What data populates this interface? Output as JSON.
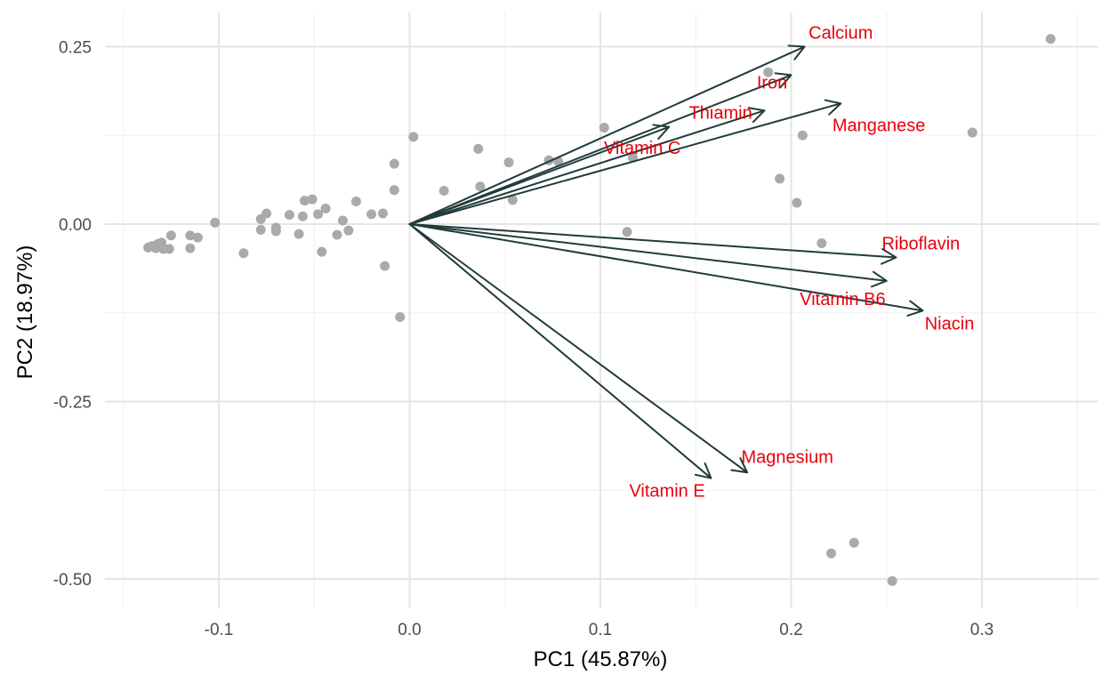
{
  "colors": {
    "background": "#ffffff",
    "grid_major": "#e5e5e5",
    "grid_minor": "#f2f2f2",
    "point": "#aaaaaa",
    "arrow": "#213b3b",
    "loading_label": "#e8000b"
  },
  "chart_data": {
    "type": "scatter",
    "subtype": "pca-biplot",
    "title": "",
    "xlabel": "PC1 (45.87%)",
    "ylabel": "PC2 (18.97%)",
    "xlim": [
      -0.15,
      0.35
    ],
    "ylim": [
      -0.54,
      0.28
    ],
    "x_ticks": [
      -0.1,
      0.0,
      0.1,
      0.2,
      0.3
    ],
    "x_tick_labels": [
      "-0.1",
      "0.0",
      "0.1",
      "0.2",
      "0.3"
    ],
    "y_ticks": [
      0.25,
      0.0,
      -0.25,
      -0.5
    ],
    "y_tick_labels": [
      "0.25",
      "0.00",
      "-0.25",
      "-0.50"
    ],
    "grid": true,
    "legend": "none",
    "points": [
      {
        "x": -0.137,
        "y": -0.033
      },
      {
        "x": -0.135,
        "y": -0.031
      },
      {
        "x": -0.133,
        "y": -0.034
      },
      {
        "x": -0.132,
        "y": -0.028
      },
      {
        "x": -0.13,
        "y": -0.026
      },
      {
        "x": -0.129,
        "y": -0.035
      },
      {
        "x": -0.126,
        "y": -0.035
      },
      {
        "x": -0.125,
        "y": -0.016
      },
      {
        "x": -0.115,
        "y": -0.016
      },
      {
        "x": -0.115,
        "y": -0.034
      },
      {
        "x": -0.111,
        "y": -0.019
      },
      {
        "x": -0.102,
        "y": 0.002
      },
      {
        "x": -0.087,
        "y": -0.041
      },
      {
        "x": -0.078,
        "y": 0.007
      },
      {
        "x": -0.078,
        "y": -0.008
      },
      {
        "x": -0.075,
        "y": 0.015
      },
      {
        "x": -0.07,
        "y": -0.005
      },
      {
        "x": -0.07,
        "y": -0.01
      },
      {
        "x": -0.063,
        "y": 0.013
      },
      {
        "x": -0.058,
        "y": -0.014
      },
      {
        "x": -0.056,
        "y": 0.011
      },
      {
        "x": -0.055,
        "y": 0.033
      },
      {
        "x": -0.051,
        "y": 0.035
      },
      {
        "x": -0.048,
        "y": 0.014
      },
      {
        "x": -0.046,
        "y": -0.039
      },
      {
        "x": -0.044,
        "y": 0.022
      },
      {
        "x": -0.038,
        "y": -0.015
      },
      {
        "x": -0.035,
        "y": 0.005
      },
      {
        "x": -0.032,
        "y": -0.009
      },
      {
        "x": -0.028,
        "y": 0.032
      },
      {
        "x": -0.02,
        "y": 0.014
      },
      {
        "x": -0.014,
        "y": 0.015
      },
      {
        "x": -0.013,
        "y": -0.059
      },
      {
        "x": -0.008,
        "y": 0.048
      },
      {
        "x": -0.008,
        "y": 0.085
      },
      {
        "x": -0.005,
        "y": -0.131
      },
      {
        "x": 0.002,
        "y": 0.123
      },
      {
        "x": 0.018,
        "y": 0.047
      },
      {
        "x": 0.036,
        "y": 0.106
      },
      {
        "x": 0.037,
        "y": 0.053
      },
      {
        "x": 0.052,
        "y": 0.087
      },
      {
        "x": 0.054,
        "y": 0.034
      },
      {
        "x": 0.073,
        "y": 0.09
      },
      {
        "x": 0.078,
        "y": 0.088
      },
      {
        "x": 0.102,
        "y": 0.136
      },
      {
        "x": 0.114,
        "y": -0.011
      },
      {
        "x": 0.117,
        "y": 0.094
      },
      {
        "x": 0.188,
        "y": 0.214
      },
      {
        "x": 0.194,
        "y": 0.064
      },
      {
        "x": 0.203,
        "y": 0.03
      },
      {
        "x": 0.206,
        "y": 0.125
      },
      {
        "x": 0.216,
        "y": -0.027
      },
      {
        "x": 0.221,
        "y": -0.464
      },
      {
        "x": 0.233,
        "y": -0.449
      },
      {
        "x": 0.253,
        "y": -0.503
      },
      {
        "x": 0.295,
        "y": 0.129
      },
      {
        "x": 0.336,
        "y": 0.261
      }
    ],
    "loadings": [
      {
        "name": "Calcium",
        "x": 0.207,
        "y": 0.25,
        "label_x": 0.226,
        "label_y": 0.27
      },
      {
        "name": "Iron",
        "x": 0.2,
        "y": 0.21,
        "label_x": 0.19,
        "label_y": 0.2
      },
      {
        "name": "Manganese",
        "x": 0.226,
        "y": 0.17,
        "label_x": 0.246,
        "label_y": 0.14
      },
      {
        "name": "Thiamin",
        "x": 0.186,
        "y": 0.16,
        "label_x": 0.163,
        "label_y": 0.157
      },
      {
        "name": "Vitamin C",
        "x": 0.136,
        "y": 0.137,
        "label_x": 0.122,
        "label_y": 0.108
      },
      {
        "name": "Riboflavin",
        "x": 0.255,
        "y": -0.047,
        "label_x": 0.268,
        "label_y": -0.027
      },
      {
        "name": "Vitamin B6",
        "x": 0.25,
        "y": -0.08,
        "label_x": 0.227,
        "label_y": -0.105
      },
      {
        "name": "Niacin",
        "x": 0.269,
        "y": -0.122,
        "label_x": 0.283,
        "label_y": -0.14
      },
      {
        "name": "Magnesium",
        "x": 0.177,
        "y": -0.35,
        "label_x": 0.198,
        "label_y": -0.328
      },
      {
        "name": "Vitamin E",
        "x": 0.158,
        "y": -0.358,
        "label_x": 0.135,
        "label_y": -0.375
      }
    ]
  }
}
